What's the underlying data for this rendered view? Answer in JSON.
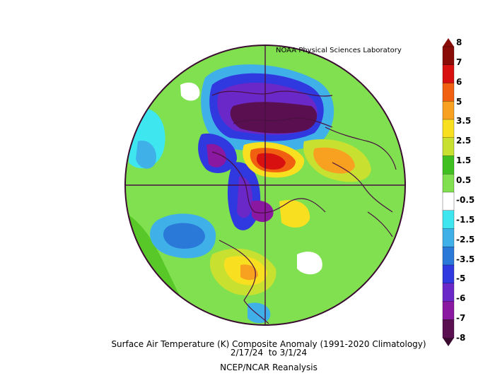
{
  "map": {
    "credit": "NOAA Physical Sciences Laboratory",
    "caption_line1": "Surface Air Temperature (K) Composite Anomaly (1991-2020 Climatology)",
    "caption_line2": "2/17/24  to 3/1/24",
    "caption_line3": "NCEP/NCAR Reanalysis",
    "projection": "north polar stereographic",
    "colors": {
      "deep_purple": "#5a1050",
      "purple": "#8a18a0",
      "violet": "#6a28c8",
      "blue": "#3038e0",
      "med_blue": "#2a78d8",
      "light_blue": "#40b0e8",
      "cyan": "#3ee6f0",
      "white": "#ffffff",
      "light_green": "#80e050",
      "green": "#40c020",
      "yellow_green": "#c8e030",
      "yellow": "#f8e020",
      "orange": "#f8a020",
      "dark_orange": "#f06010",
      "red": "#d81010",
      "dark_red": "#8a0c08"
    }
  },
  "colorbar": {
    "labels": [
      "8",
      "7",
      "6",
      "5",
      "3.5",
      "2.5",
      "1.5",
      "0.5",
      "-0.5",
      "-1.5",
      "-2.5",
      "-3.5",
      "-5",
      "-6",
      "-7",
      "-8"
    ]
  }
}
